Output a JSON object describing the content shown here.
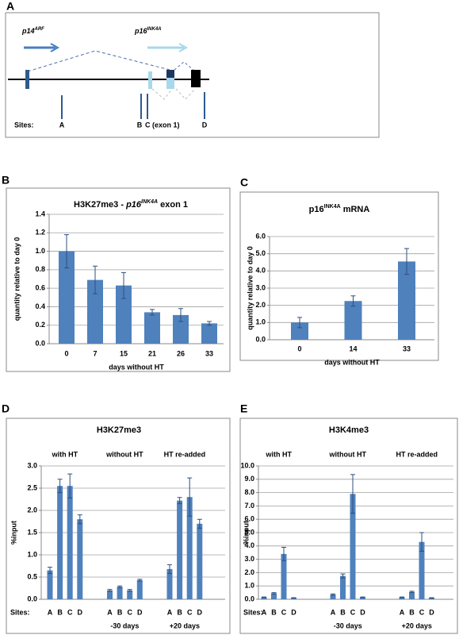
{
  "diagram": {
    "panel": "A",
    "gene1": "p14",
    "gene1_sup": "ARF",
    "gene2": "p16",
    "gene2_sup": "INK4A",
    "sites_label": "Sites:",
    "sites": [
      "A",
      "B",
      "C (exon 1)",
      "D"
    ]
  },
  "chart_data": [
    {
      "type": "bar",
      "panel": "B",
      "title": [
        "H3K27me3 - ",
        "p16",
        "INK4A",
        " exon 1"
      ],
      "categories": [
        "0",
        "7",
        "15",
        "21",
        "26",
        "33"
      ],
      "values": [
        1.0,
        0.69,
        0.63,
        0.34,
        0.31,
        0.22
      ],
      "errors": [
        0.18,
        0.15,
        0.14,
        0.03,
        0.07,
        0.02
      ],
      "color": "#4f81bd",
      "ylim": [
        0,
        1.4
      ],
      "yticks": [
        {
          "value": 0,
          "label": "0.0"
        },
        0.2,
        0.4,
        0.6,
        0.8,
        {
          "value": 1,
          "label": "1.0"
        },
        1.2,
        1.4
      ],
      "grid": true,
      "ylabel": "quantity relative to day 0",
      "xlabel": "days without HT"
    },
    {
      "type": "bar",
      "panel": "C",
      "title": [
        "p16",
        "INK4A",
        " mRNA"
      ],
      "categories": [
        "0",
        "14",
        "33"
      ],
      "values": [
        1.0,
        2.25,
        4.55
      ],
      "errors": [
        0.3,
        0.3,
        0.75
      ],
      "color": "#4f81bd",
      "ylim": [
        0,
        6
      ],
      "yticks": [
        {
          "value": 0,
          "label": "0.0"
        },
        {
          "value": 1,
          "label": "1.0"
        },
        {
          "value": 2,
          "label": "2.0"
        },
        {
          "value": 3,
          "label": "3.0"
        },
        {
          "value": 4,
          "label": "4.0"
        },
        {
          "value": 5,
          "label": "5.0"
        },
        {
          "value": 6,
          "label": "6.0"
        }
      ],
      "grid": true,
      "ylabel": "quantity relative to day 0",
      "xlabel": "days without HT"
    },
    {
      "type": "bar",
      "panel": "D",
      "title": [
        "H3K27me3"
      ],
      "categories": [
        "A",
        "B",
        "C",
        "D",
        "A",
        "B",
        "C",
        "D",
        "A",
        "B",
        "C",
        "D"
      ],
      "values": [
        0.65,
        2.55,
        2.55,
        1.8,
        0.2,
        0.28,
        0.2,
        0.43,
        0.68,
        2.22,
        2.3,
        1.7
      ],
      "errors": [
        0.07,
        0.15,
        0.27,
        0.1,
        0.02,
        0.02,
        0.02,
        0.02,
        0.1,
        0.07,
        0.43,
        0.1
      ],
      "groups": [
        {
          "label": "with HT"
        },
        {
          "label": "without HT",
          "sublabel": "-30 days"
        },
        {
          "label": "HT re-added",
          "sublabel": "+20 days"
        }
      ],
      "color": "#4f81bd",
      "ylim": [
        0,
        3
      ],
      "yticks": [
        {
          "value": 0,
          "label": "0.0"
        },
        0.5,
        {
          "value": 1,
          "label": "1.0"
        },
        1.5,
        {
          "value": 2,
          "label": "2.0"
        },
        2.5,
        {
          "value": 3,
          "label": "3.0"
        }
      ],
      "grid": true,
      "ylabel": "%input",
      "sites_label": "Sites:"
    },
    {
      "type": "bar",
      "panel": "E",
      "title": [
        "H3K4me3"
      ],
      "categories": [
        "A",
        "B",
        "C",
        "D",
        "A",
        "B",
        "C",
        "D",
        "A",
        "B",
        "C",
        "D"
      ],
      "values": [
        0.15,
        0.45,
        3.4,
        0.1,
        0.35,
        1.75,
        7.9,
        0.15,
        0.15,
        0.55,
        4.3,
        0.1
      ],
      "errors": [
        0.02,
        0.05,
        0.5,
        0.02,
        0.05,
        0.15,
        1.45,
        0.02,
        0.02,
        0.05,
        0.7,
        0.02
      ],
      "groups": [
        {
          "label": "with HT"
        },
        {
          "label": "without HT",
          "sublabel": "-30 days"
        },
        {
          "label": "HT re-added",
          "sublabel": "+20 days"
        }
      ],
      "color": "#4f81bd",
      "ylim": [
        0,
        10
      ],
      "yticks": [
        {
          "value": 0,
          "label": "0.0"
        },
        {
          "value": 1,
          "label": "1.0"
        },
        {
          "value": 2,
          "label": "2.0"
        },
        {
          "value": 3,
          "label": "3.0"
        },
        {
          "value": 4,
          "label": "4.0"
        },
        {
          "value": 5,
          "label": "5.0"
        },
        {
          "value": 6,
          "label": "6.0"
        },
        {
          "value": 7,
          "label": "7.0"
        },
        {
          "value": 8,
          "label": "8.0"
        },
        {
          "value": 9,
          "label": "9.0"
        },
        {
          "value": 10,
          "label": "10.0"
        }
      ],
      "grid": true,
      "ylabel": "%input",
      "sites_label": "Sites:"
    }
  ]
}
